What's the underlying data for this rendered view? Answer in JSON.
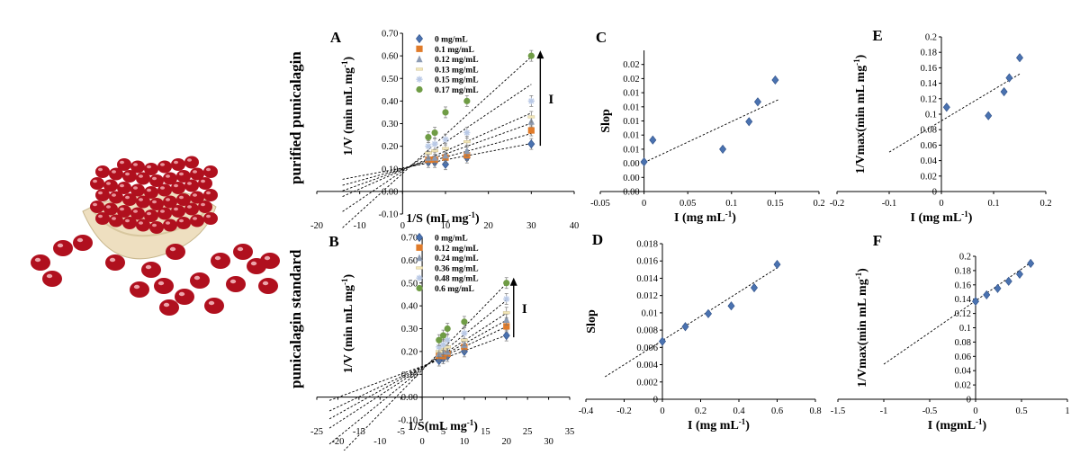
{
  "row_labels": [
    "purified punicalagin",
    "punicalagin standard"
  ],
  "image_alt": "pomegranate",
  "colors": {
    "s0": "#4a72b0",
    "s1": "#e07b2a",
    "s2": "#8c9bb3",
    "s3": "#f2e6b8",
    "s4": "#b9c9e6",
    "s5": "#6f9c45",
    "scatter": "#4a72b0",
    "fruit_red": "#b0101e",
    "fruit_pith": "#eedfc0"
  },
  "chart_data": [
    {
      "id": "A",
      "panel": "A",
      "type": "line",
      "xlabel": "1/S (mL mg",
      "xlabel_sup": "-1",
      "xlabel_tail": ")",
      "ylabel": "1/V (min mL mg",
      "ylabel_sup": "-1",
      "ylabel_tail": ")",
      "xlim": [
        -20,
        40
      ],
      "ylim": [
        -0.1,
        0.7
      ],
      "xticks": [
        "-20",
        "-10",
        "0",
        "10",
        "20",
        "30",
        "40"
      ],
      "xtick_values": [
        -20,
        -10,
        0,
        10,
        20,
        30,
        40
      ],
      "yticks": [
        "-0.10",
        "0.00",
        "0.10",
        "0.20",
        "0.30",
        "0.40",
        "0.50",
        "0.60",
        "0.70"
      ],
      "ytick_values": [
        -0.1,
        0,
        0.1,
        0.2,
        0.3,
        0.4,
        0.5,
        0.6,
        0.7
      ],
      "arrow_label": "I",
      "x": [
        6,
        7.5,
        10,
        15,
        30
      ],
      "trend_from_x": -14,
      "series": [
        {
          "name": "0 mg/mL",
          "marker": "diamond",
          "values": [
            0.13,
            0.13,
            0.12,
            0.15,
            0.21
          ],
          "intercept": 0.104,
          "slope": 0.0036
        },
        {
          "name": "0.1 mg/mL",
          "marker": "square",
          "values": [
            0.14,
            0.14,
            0.15,
            0.16,
            0.27
          ],
          "intercept": 0.1,
          "slope": 0.0052
        },
        {
          "name": "0.12 mg/mL",
          "marker": "triangle",
          "values": [
            0.15,
            0.15,
            0.16,
            0.18,
            0.31
          ],
          "intercept": 0.098,
          "slope": 0.0068
        },
        {
          "name": "0.13 mg/mL",
          "marker": "dash",
          "values": [
            0.17,
            0.18,
            0.19,
            0.22,
            0.33
          ],
          "intercept": 0.095,
          "slope": 0.0084
        },
        {
          "name": "0.15 mg/mL",
          "marker": "star",
          "values": [
            0.2,
            0.21,
            0.23,
            0.26,
            0.4
          ],
          "intercept": 0.09,
          "slope": 0.0128
        },
        {
          "name": "0.17 mg/mL",
          "marker": "circle",
          "values": [
            0.24,
            0.26,
            0.35,
            0.4,
            0.6
          ],
          "intercept": 0.08,
          "slope": 0.0172
        }
      ]
    },
    {
      "id": "B",
      "panel": "B",
      "type": "line",
      "xlabel": "1/S(mL mg",
      "xlabel_sup": "-1",
      "xlabel_tail": ")",
      "ylabel": "1/V (min mL mg",
      "ylabel_sup": "-1",
      "ylabel_tail": ")",
      "xlim": [
        -25,
        35
      ],
      "ylim": [
        -0.1,
        0.7
      ],
      "xticks": [
        "-25",
        "-15",
        "-5",
        "5",
        "15",
        "25",
        "35",
        "-20",
        "-10",
        "0",
        "10",
        "20",
        "30"
      ],
      "xtick_values": [
        -25,
        -15,
        -5,
        5,
        15,
        25,
        35,
        -20,
        -10,
        0,
        10,
        20,
        30
      ],
      "yticks": [
        "-0.10",
        "0.00",
        "0.10",
        "0.20",
        "0.30",
        "0.40",
        "0.50",
        "0.60",
        "0.70"
      ],
      "ytick_values": [
        -0.1,
        0,
        0.1,
        0.2,
        0.3,
        0.4,
        0.5,
        0.6,
        0.7
      ],
      "arrow_label": "I",
      "x": [
        4,
        5,
        6,
        10,
        20
      ],
      "trend_from_x": -22,
      "series": [
        {
          "name": "0 mg/mL",
          "marker": "diamond",
          "values": [
            0.16,
            0.17,
            0.18,
            0.2,
            0.27
          ],
          "intercept": 0.135,
          "slope": 0.0068
        },
        {
          "name": "0.12 mg/mL",
          "marker": "square",
          "values": [
            0.18,
            0.18,
            0.19,
            0.22,
            0.31
          ],
          "intercept": 0.133,
          "slope": 0.0088
        },
        {
          "name": "0.24 mg/mL",
          "marker": "triangle",
          "values": [
            0.19,
            0.2,
            0.2,
            0.23,
            0.34
          ],
          "intercept": 0.131,
          "slope": 0.0103
        },
        {
          "name": "0.36 mg/mL",
          "marker": "dash",
          "values": [
            0.2,
            0.21,
            0.22,
            0.25,
            0.37
          ],
          "intercept": 0.128,
          "slope": 0.012
        },
        {
          "name": "0.48 mg/mL",
          "marker": "star",
          "values": [
            0.22,
            0.23,
            0.25,
            0.28,
            0.43
          ],
          "intercept": 0.124,
          "slope": 0.015
        },
        {
          "name": "0.6 mg/mL",
          "marker": "circle",
          "values": [
            0.25,
            0.27,
            0.3,
            0.33,
            0.5
          ],
          "intercept": 0.118,
          "slope": 0.019
        }
      ]
    },
    {
      "id": "C",
      "panel": "C",
      "type": "scatter",
      "xlabel": "I (mg mL",
      "xlabel_sup": "-1",
      "xlabel_tail": ")",
      "ylabel": "Slop",
      "ylabel_sup": "",
      "ylabel_tail": "",
      "xlim": [
        -0.05,
        0.2
      ],
      "ylim": [
        0,
        0.02
      ],
      "xticks": [
        "-0.05",
        "0",
        "0.05",
        "0.1",
        "0.15",
        "0.2"
      ],
      "xtick_values": [
        -0.05,
        0,
        0.05,
        0.1,
        0.15,
        0.2
      ],
      "yticks": [
        "0.00",
        "0.00",
        "0.00",
        "0.01",
        "0.01",
        "0.01",
        "0.01",
        "0.01",
        "0.02",
        "0.02"
      ],
      "ytick_values": [
        0,
        0.002,
        0.004,
        0.006,
        0.008,
        0.01,
        0.012,
        0.014,
        0.016,
        0.018
      ],
      "points": {
        "x": [
          0,
          0.01,
          0.09,
          0.12,
          0.13,
          0.15
        ],
        "y": [
          0.0042,
          0.0073,
          0.006,
          0.0099,
          0.0127,
          0.0158
        ]
      },
      "trend_x": [
        0,
        0.155
      ],
      "trend_y": [
        0.0041,
        0.0131
      ]
    },
    {
      "id": "D",
      "panel": "D",
      "type": "scatter",
      "xlabel": "I (mg mL",
      "xlabel_sup": "-1",
      "xlabel_tail": ")",
      "ylabel": "Slop",
      "ylabel_sup": "",
      "ylabel_tail": "",
      "xlim": [
        -0.4,
        0.8
      ],
      "ylim": [
        0,
        0.018
      ],
      "xticks": [
        "-0.4",
        "-0.2",
        "0",
        "0.2",
        "0.4",
        "0.6",
        "0.8"
      ],
      "xtick_values": [
        -0.4,
        -0.2,
        0,
        0.2,
        0.4,
        0.6,
        0.8
      ],
      "yticks": [
        "0",
        "0.002",
        "0.004",
        "0.006",
        "0.008",
        "0.01",
        "0.012",
        "0.014",
        "0.016",
        "0.018"
      ],
      "ytick_values": [
        0,
        0.002,
        0.004,
        0.006,
        0.008,
        0.01,
        0.012,
        0.014,
        0.016,
        0.018
      ],
      "points": {
        "x": [
          0,
          0.12,
          0.24,
          0.36,
          0.48,
          0.6
        ],
        "y": [
          0.0067,
          0.0084,
          0.0099,
          0.0108,
          0.0129,
          0.0156
        ]
      },
      "trend_x": [
        -0.3,
        0.6
      ],
      "trend_y": [
        0.0026,
        0.0152
      ]
    },
    {
      "id": "E",
      "panel": "E",
      "type": "scatter",
      "xlabel": "I (mg mL",
      "xlabel_sup": "-1",
      "xlabel_tail": ")",
      "ylabel": "1/Vmax(min mL mg",
      "ylabel_sup": "-1",
      "ylabel_tail": ")",
      "xlim": [
        -0.2,
        0.2
      ],
      "ylim": [
        0,
        0.2
      ],
      "xticks": [
        "-0.2",
        "-0.1",
        "0",
        "0.1",
        "0.2"
      ],
      "xtick_values": [
        -0.2,
        -0.1,
        0,
        0.1,
        0.2
      ],
      "yticks": [
        "0",
        "0.02",
        "0.04",
        "0.06",
        "0.08",
        "0.1",
        "0.12",
        "0.14",
        "0.16",
        "0.18",
        "0.2"
      ],
      "ytick_values": [
        0,
        0.02,
        0.04,
        0.06,
        0.08,
        0.1,
        0.12,
        0.14,
        0.16,
        0.18,
        0.2
      ],
      "points": {
        "x": [
          0.01,
          0.09,
          0.12,
          0.13,
          0.15
        ],
        "y": [
          0.109,
          0.098,
          0.129,
          0.147,
          0.173
        ]
      },
      "trend_x": [
        -0.1,
        0.15
      ],
      "trend_y": [
        0.051,
        0.152
      ]
    },
    {
      "id": "F",
      "panel": "F",
      "type": "scatter",
      "xlabel": "I (mgmL",
      "xlabel_sup": "-1",
      "xlabel_tail": ")",
      "ylabel": "1/Vmax(min mL mg",
      "ylabel_sup": "-1",
      "ylabel_tail": ")",
      "xlim": [
        -1.5,
        1
      ],
      "ylim": [
        0,
        0.2
      ],
      "xticks": [
        "-1.5",
        "-1",
        "-0.5",
        "0",
        "0.5",
        "1"
      ],
      "xtick_values": [
        -1.5,
        -1,
        -0.5,
        0,
        0.5,
        1
      ],
      "yticks": [
        "0",
        "0.02",
        "0.04",
        "0.06",
        "0.08",
        "0.1",
        "0.12",
        "0.14",
        "0.16",
        "0.18",
        "0.2"
      ],
      "ytick_values": [
        0,
        0.02,
        0.04,
        0.06,
        0.08,
        0.1,
        0.12,
        0.14,
        0.16,
        0.18,
        0.2
      ],
      "points": {
        "x": [
          0,
          0.12,
          0.24,
          0.36,
          0.48,
          0.6
        ],
        "y": [
          0.137,
          0.146,
          0.155,
          0.165,
          0.175,
          0.19
        ]
      },
      "trend_x": [
        -1,
        0.6
      ],
      "trend_y": [
        0.049,
        0.191
      ]
    }
  ]
}
